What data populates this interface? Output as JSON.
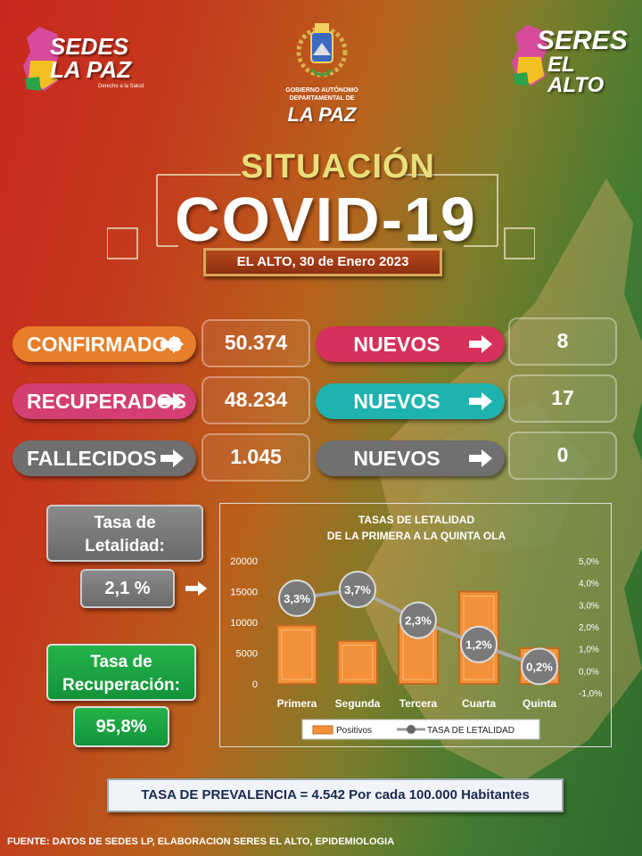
{
  "logos": {
    "left": {
      "line1": "SEDES",
      "line2": "LA PAZ",
      "tagline": "Derecho a la Salud"
    },
    "center": {
      "line1": "GOBIERNO AUTÓNOMO",
      "line2": "DEPARTAMENTAL DE",
      "line3": "LA PAZ"
    },
    "right": {
      "line1": "SERES",
      "line2": "EL ALTO"
    }
  },
  "header": {
    "situacion": "SITUACIÓN",
    "covid": "COVID-19",
    "date": "EL ALTO, 30 de Enero 2023"
  },
  "stats": [
    {
      "label": "CONFIRMADOS",
      "value": "50.374",
      "new_label": "NUEVOS",
      "new_value": "8",
      "color": "#e77e2a",
      "new_color": "#d6315a"
    },
    {
      "label": "RECUPERADOS",
      "value": "48.234",
      "new_label": "NUEVOS",
      "new_value": "17",
      "color": "#d33e73",
      "new_color": "#1fb3b0"
    },
    {
      "label": "FALLECIDOS",
      "value": "1.045",
      "new_label": "NUEVOS",
      "new_value": "0",
      "color": "#6f6f6f",
      "new_color": "#707070"
    }
  ],
  "letalidad": {
    "label_line1": "Tasa de",
    "label_line2": "Letalidad:",
    "value": "2,1 %"
  },
  "recuperacion": {
    "label_line1": "Tasa de",
    "label_line2": "Recuperación:",
    "value": "95,8%"
  },
  "chart_data": {
    "type": "bar",
    "title_line1": "TASAS DE LETALIDAD",
    "title_line2": "DE LA PRIMERA A LA QUINTA OLA",
    "categories": [
      "Primera",
      "Segunda",
      "Tercera",
      "Cuarta",
      "Quinta"
    ],
    "series": [
      {
        "name": "Positivos",
        "type": "bar",
        "axis": "left",
        "values": [
          9500,
          7000,
          9600,
          15000,
          5800
        ]
      },
      {
        "name": "TASA DE LETALIDAD",
        "type": "line",
        "axis": "right",
        "values": [
          3.3,
          3.7,
          2.3,
          1.2,
          0.2
        ],
        "labels": [
          "3,3%",
          "3,7%",
          "2,3%",
          "1,2%",
          "0,2%"
        ]
      }
    ],
    "left_ticks": [
      "20000",
      "15000",
      "10000",
      "5000",
      "0"
    ],
    "left_ylim": [
      0,
      20000
    ],
    "right_ticks": [
      "5,0%",
      "4,0%",
      "3,0%",
      "2,0%",
      "1,0%",
      "0,0%",
      "-1,0%"
    ],
    "right_ylim": [
      -1.0,
      5.0
    ],
    "legend_position": "bottom",
    "colors": {
      "bar": "#f2913a",
      "line": "#9a9a9a"
    }
  },
  "prevalencia": "TASA DE PREVALENCIA = 4.542  Por cada 100.000 Habitantes",
  "footer": "FUENTE: DATOS DE SEDES LP, ELABORACION SERES EL ALTO, EPIDEMIOLOGIA"
}
